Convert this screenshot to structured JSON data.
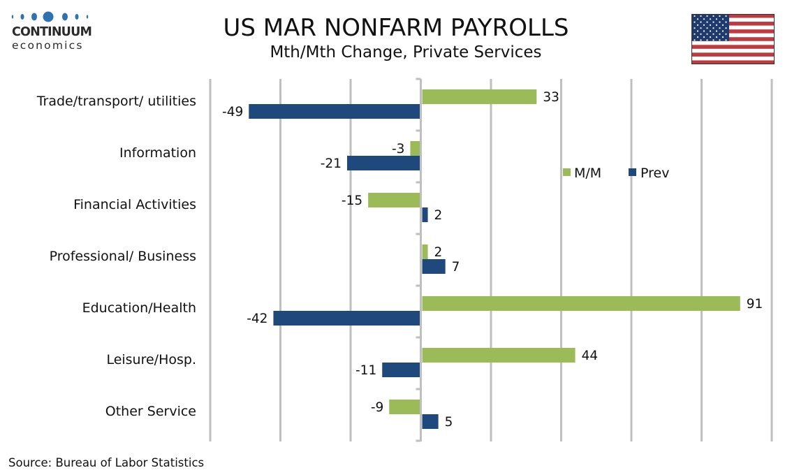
{
  "brand": {
    "line1": "CONTINUUM",
    "line2": "economics",
    "color": "#2f72b0"
  },
  "header": {
    "title": "US MAR NONFARM PAYROLLS",
    "subtitle": "Mth/Mth Change, Private Services"
  },
  "flag_icon": "us-flag-icon",
  "footer": {
    "source": "Source: Bureau of Labor Statistics"
  },
  "chart_data": {
    "type": "bar",
    "orientation": "horizontal",
    "title": "US MAR NONFARM PAYROLLS",
    "subtitle": "Mth/Mth Change, Private Services",
    "categories": [
      "Trade/transport/ utilities",
      "Information",
      "Financial Activities",
      "Professional/ Business",
      "Education/Health",
      "Leisure/Hosp.",
      "Other Service"
    ],
    "series": [
      {
        "name": "M/M",
        "color": "#9bbb59",
        "values": [
          33,
          -3,
          -15,
          2,
          91,
          44,
          -9
        ]
      },
      {
        "name": "Prev",
        "color": "#1f497d",
        "values": [
          -49,
          -21,
          2,
          7,
          -42,
          -11,
          5
        ]
      }
    ],
    "xlim": [
      -60,
      100
    ],
    "x_gridline_step": 20,
    "x_tick_labels_shown": false,
    "grid": true,
    "legend": {
      "placement": "center-right",
      "entries": [
        "M/M",
        "Prev"
      ]
    },
    "data_labels": true,
    "xlabel": "",
    "ylabel": ""
  }
}
